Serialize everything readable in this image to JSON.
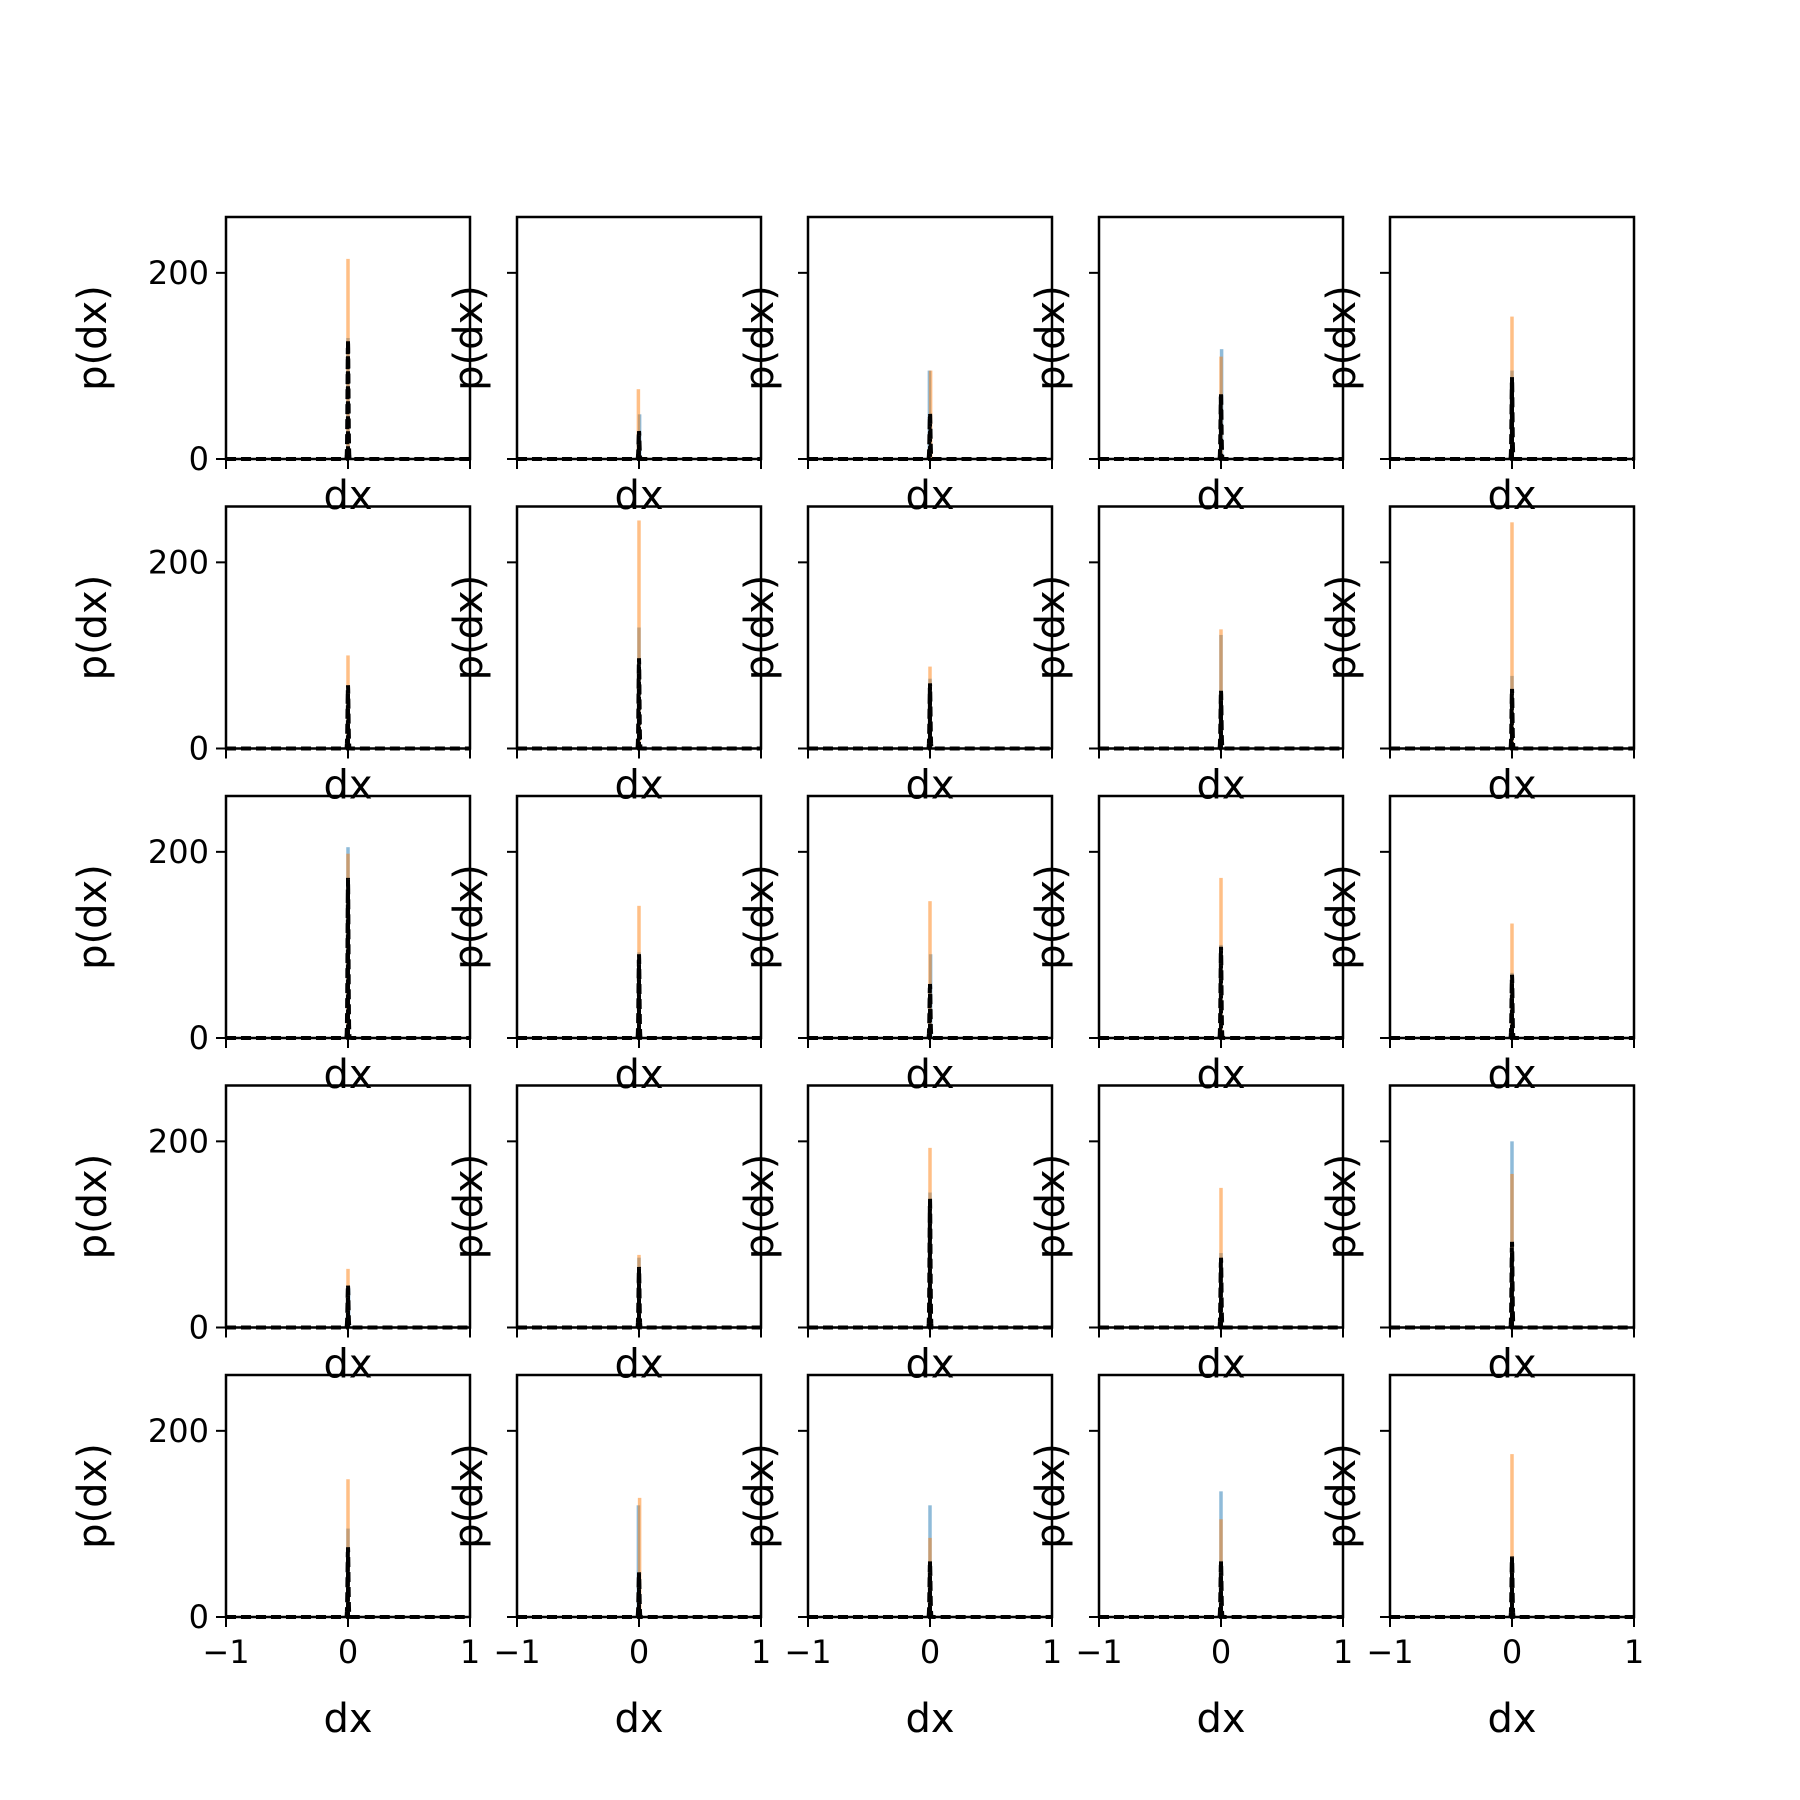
{
  "chart_data": {
    "type": "bar",
    "layout": {
      "rows": 5,
      "cols": 5
    },
    "shared_axes": {
      "xlabel": "dx",
      "ylabel": "p(dx)",
      "xlim": [
        -1,
        1
      ],
      "ylim": [
        0,
        260
      ],
      "xticks": [
        -1,
        0,
        1
      ],
      "xtick_labels": [
        "−1",
        "0",
        "1"
      ],
      "yticks": [
        0,
        200
      ],
      "ytick_labels": [
        "0",
        "200"
      ],
      "grid": false
    },
    "series_style": [
      {
        "role": "histogram-a",
        "color": "#1f77b4",
        "opacity": 0.5
      },
      {
        "role": "histogram-b",
        "color": "#ff7f0e",
        "opacity": 0.5
      },
      {
        "role": "density-curve",
        "color": "#000000",
        "dash": "dashed"
      }
    ],
    "panels": [
      {
        "blue": [
          [
            0,
            130
          ]
        ],
        "orange": [
          [
            0,
            215
          ]
        ],
        "curve_peak": 128
      },
      {
        "blue": [
          [
            0.005,
            48
          ],
          [
            -0.005,
            20
          ]
        ],
        "orange": [
          [
            -0.005,
            75
          ]
        ],
        "curve_peak": 30
      },
      {
        "blue": [
          [
            -0.005,
            95
          ]
        ],
        "orange": [
          [
            0.005,
            95
          ]
        ],
        "curve_peak": 50
      },
      {
        "blue": [
          [
            0.005,
            118
          ]
        ],
        "orange": [
          [
            0,
            110
          ]
        ],
        "curve_peak": 72
      },
      {
        "blue": [
          [
            0,
            95
          ]
        ],
        "orange": [
          [
            0,
            153
          ]
        ],
        "curve_peak": 88
      },
      {
        "blue": [
          [
            0,
            65
          ]
        ],
        "orange": [
          [
            0,
            100
          ]
        ],
        "curve_peak": 68
      },
      {
        "blue": [
          [
            0,
            130
          ]
        ],
        "orange": [
          [
            0,
            245
          ]
        ],
        "curve_peak": 97
      },
      {
        "blue": [
          [
            0,
            75
          ]
        ],
        "orange": [
          [
            0,
            88
          ]
        ],
        "curve_peak": 70
      },
      {
        "blue": [
          [
            0,
            122
          ]
        ],
        "orange": [
          [
            0,
            128
          ]
        ],
        "curve_peak": 62
      },
      {
        "blue": [
          [
            0,
            78
          ]
        ],
        "orange": [
          [
            0,
            243
          ]
        ],
        "curve_peak": 64
      },
      {
        "blue": [
          [
            0,
            205
          ]
        ],
        "orange": [
          [
            0,
            198
          ]
        ],
        "curve_peak": 172
      },
      {
        "blue": [
          [
            0,
            92
          ]
        ],
        "orange": [
          [
            0,
            142
          ]
        ],
        "curve_peak": 90
      },
      {
        "blue": [
          [
            0.005,
            90
          ]
        ],
        "orange": [
          [
            0,
            147
          ]
        ],
        "curve_peak": 58
      },
      {
        "blue": [
          [
            0,
            100
          ]
        ],
        "orange": [
          [
            0,
            172
          ]
        ],
        "curve_peak": 98
      },
      {
        "blue": [
          [
            0,
            70
          ]
        ],
        "orange": [
          [
            0,
            123
          ]
        ],
        "curve_peak": 68
      },
      {
        "blue": [
          [
            0.005,
            42
          ]
        ],
        "orange": [
          [
            0,
            63
          ]
        ],
        "curve_peak": 45
      },
      {
        "blue": [
          [
            0,
            75
          ]
        ],
        "orange": [
          [
            0,
            78
          ]
        ],
        "curve_peak": 65
      },
      {
        "blue": [
          [
            0,
            145
          ]
        ],
        "orange": [
          [
            0,
            193
          ]
        ],
        "curve_peak": 140
      },
      {
        "blue": [
          [
            0,
            80
          ]
        ],
        "orange": [
          [
            0,
            150
          ]
        ],
        "curve_peak": 75
      },
      {
        "blue": [
          [
            0,
            200
          ]
        ],
        "orange": [
          [
            0,
            165
          ]
        ],
        "curve_peak": 92
      },
      {
        "blue": [
          [
            0,
            95
          ]
        ],
        "orange": [
          [
            0,
            148
          ]
        ],
        "curve_peak": 75
      },
      {
        "blue": [
          [
            -0.005,
            120
          ]
        ],
        "orange": [
          [
            0.005,
            128
          ]
        ],
        "curve_peak": 48
      },
      {
        "blue": [
          [
            0,
            120
          ]
        ],
        "orange": [
          [
            0,
            85
          ]
        ],
        "curve_peak": 60
      },
      {
        "blue": [
          [
            0,
            135
          ]
        ],
        "orange": [
          [
            0,
            105
          ]
        ],
        "curve_peak": 60
      },
      {
        "blue": [
          [
            0,
            20
          ]
        ],
        "orange": [
          [
            0,
            175
          ]
        ],
        "curve_peak": 65
      }
    ]
  }
}
